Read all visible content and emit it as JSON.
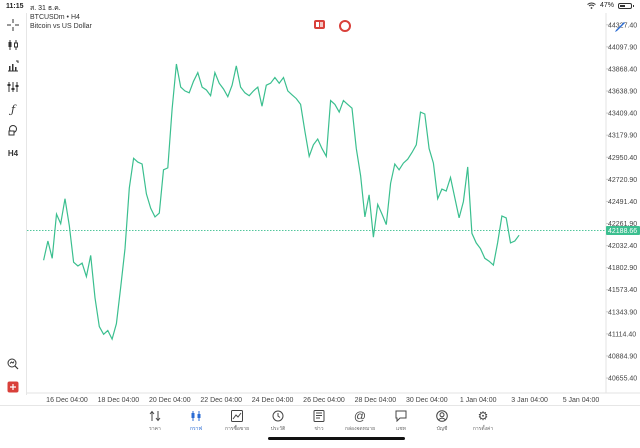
{
  "status": {
    "time": "11:15",
    "date": "ส. 31 ธ.ค.",
    "battery": "47%",
    "battery_level": 0.47,
    "wifi_icon": "wifi-icon"
  },
  "chart_header": {
    "symbol": "BTCUSDm • H4",
    "description": "Bitcoin vs US Dollar"
  },
  "left_tools": [
    {
      "name": "crosshair-icon"
    },
    {
      "name": "candle-type-icon"
    },
    {
      "name": "indicators-icon"
    },
    {
      "name": "settings-sliders-icon"
    },
    {
      "name": "function-icon"
    },
    {
      "name": "objects-icon"
    },
    {
      "name": "timeframe-button",
      "label": "H4"
    }
  ],
  "chart_data": {
    "type": "line",
    "title": "",
    "xlabel": "",
    "ylabel": "",
    "ylim": [
      40500,
      44450
    ],
    "current_price": 42188.66,
    "current_price_label": "42188.66",
    "color": "#3bbf8f",
    "y_ticks": [
      "44327.40",
      "44097.90",
      "43868.40",
      "43638.90",
      "43409.40",
      "43179.90",
      "42950.40",
      "42720.90",
      "42491.40",
      "42261.90",
      "42032.40",
      "41802.90",
      "41573.40",
      "41343.90",
      "41114.40",
      "40884.90",
      "40655.40"
    ],
    "x_ticks": [
      "16 Dec 04:00",
      "18 Dec 04:00",
      "20 Dec 04:00",
      "22 Dec 04:00",
      "24 Dec 04:00",
      "26 Dec 04:00",
      "28 Dec 04:00",
      "30 Dec 04:00",
      "1 Jan 04:00",
      "3 Jan 04:00",
      "5 Jan 04:00"
    ],
    "x_start": "15 Dec 04:00",
    "bars_per_tick": 12,
    "values": [
      41880,
      42080,
      41900,
      42360,
      42260,
      42520,
      42240,
      41860,
      41820,
      41850,
      41710,
      41930,
      41490,
      41190,
      41110,
      41150,
      41060,
      41220,
      41600,
      42000,
      42630,
      42940,
      42900,
      42880,
      42570,
      42420,
      42330,
      42370,
      42820,
      42840,
      43450,
      43920,
      43680,
      43640,
      43620,
      43740,
      43830,
      43680,
      43650,
      43590,
      43830,
      43720,
      43660,
      43580,
      43700,
      43900,
      43680,
      43620,
      43590,
      43640,
      43680,
      43480,
      43700,
      43720,
      43780,
      43720,
      43780,
      43640,
      43600,
      43560,
      43500,
      43220,
      42960,
      43080,
      43140,
      43040,
      42960,
      43540,
      43500,
      43420,
      43540,
      43500,
      43460,
      43040,
      42760,
      42330,
      42560,
      42120,
      42460,
      42360,
      42250,
      42680,
      42880,
      42820,
      42890,
      42930,
      43000,
      43080,
      43420,
      43400,
      43040,
      42890,
      42520,
      42620,
      42600,
      42740,
      42530,
      42320,
      42490,
      42850,
      42160,
      42060,
      42000,
      41900,
      41870,
      41830,
      42060,
      42340,
      42320,
      42060,
      42080,
      42140
    ]
  },
  "tabbar": {
    "items": [
      {
        "name": "tab-quotes",
        "label": "ราคา",
        "icon": "arrows-updown-icon"
      },
      {
        "name": "tab-chart",
        "label": "กราฟ",
        "icon": "candles-icon",
        "active": true
      },
      {
        "name": "tab-trade",
        "label": "การซื้อขาย",
        "icon": "trend-icon"
      },
      {
        "name": "tab-history",
        "label": "ประวัติ",
        "icon": "history-icon"
      },
      {
        "name": "tab-news",
        "label": "ข่าว",
        "icon": "news-icon"
      },
      {
        "name": "tab-mailbox",
        "label": "กล่องจดหมาย",
        "icon": "at-icon"
      },
      {
        "name": "tab-chat",
        "label": "แชท",
        "icon": "chat-icon"
      },
      {
        "name": "tab-account",
        "label": "บัญชี",
        "icon": "account-icon"
      },
      {
        "name": "tab-settings",
        "label": "การตั้งค่า",
        "icon": "gear-icon"
      }
    ]
  }
}
